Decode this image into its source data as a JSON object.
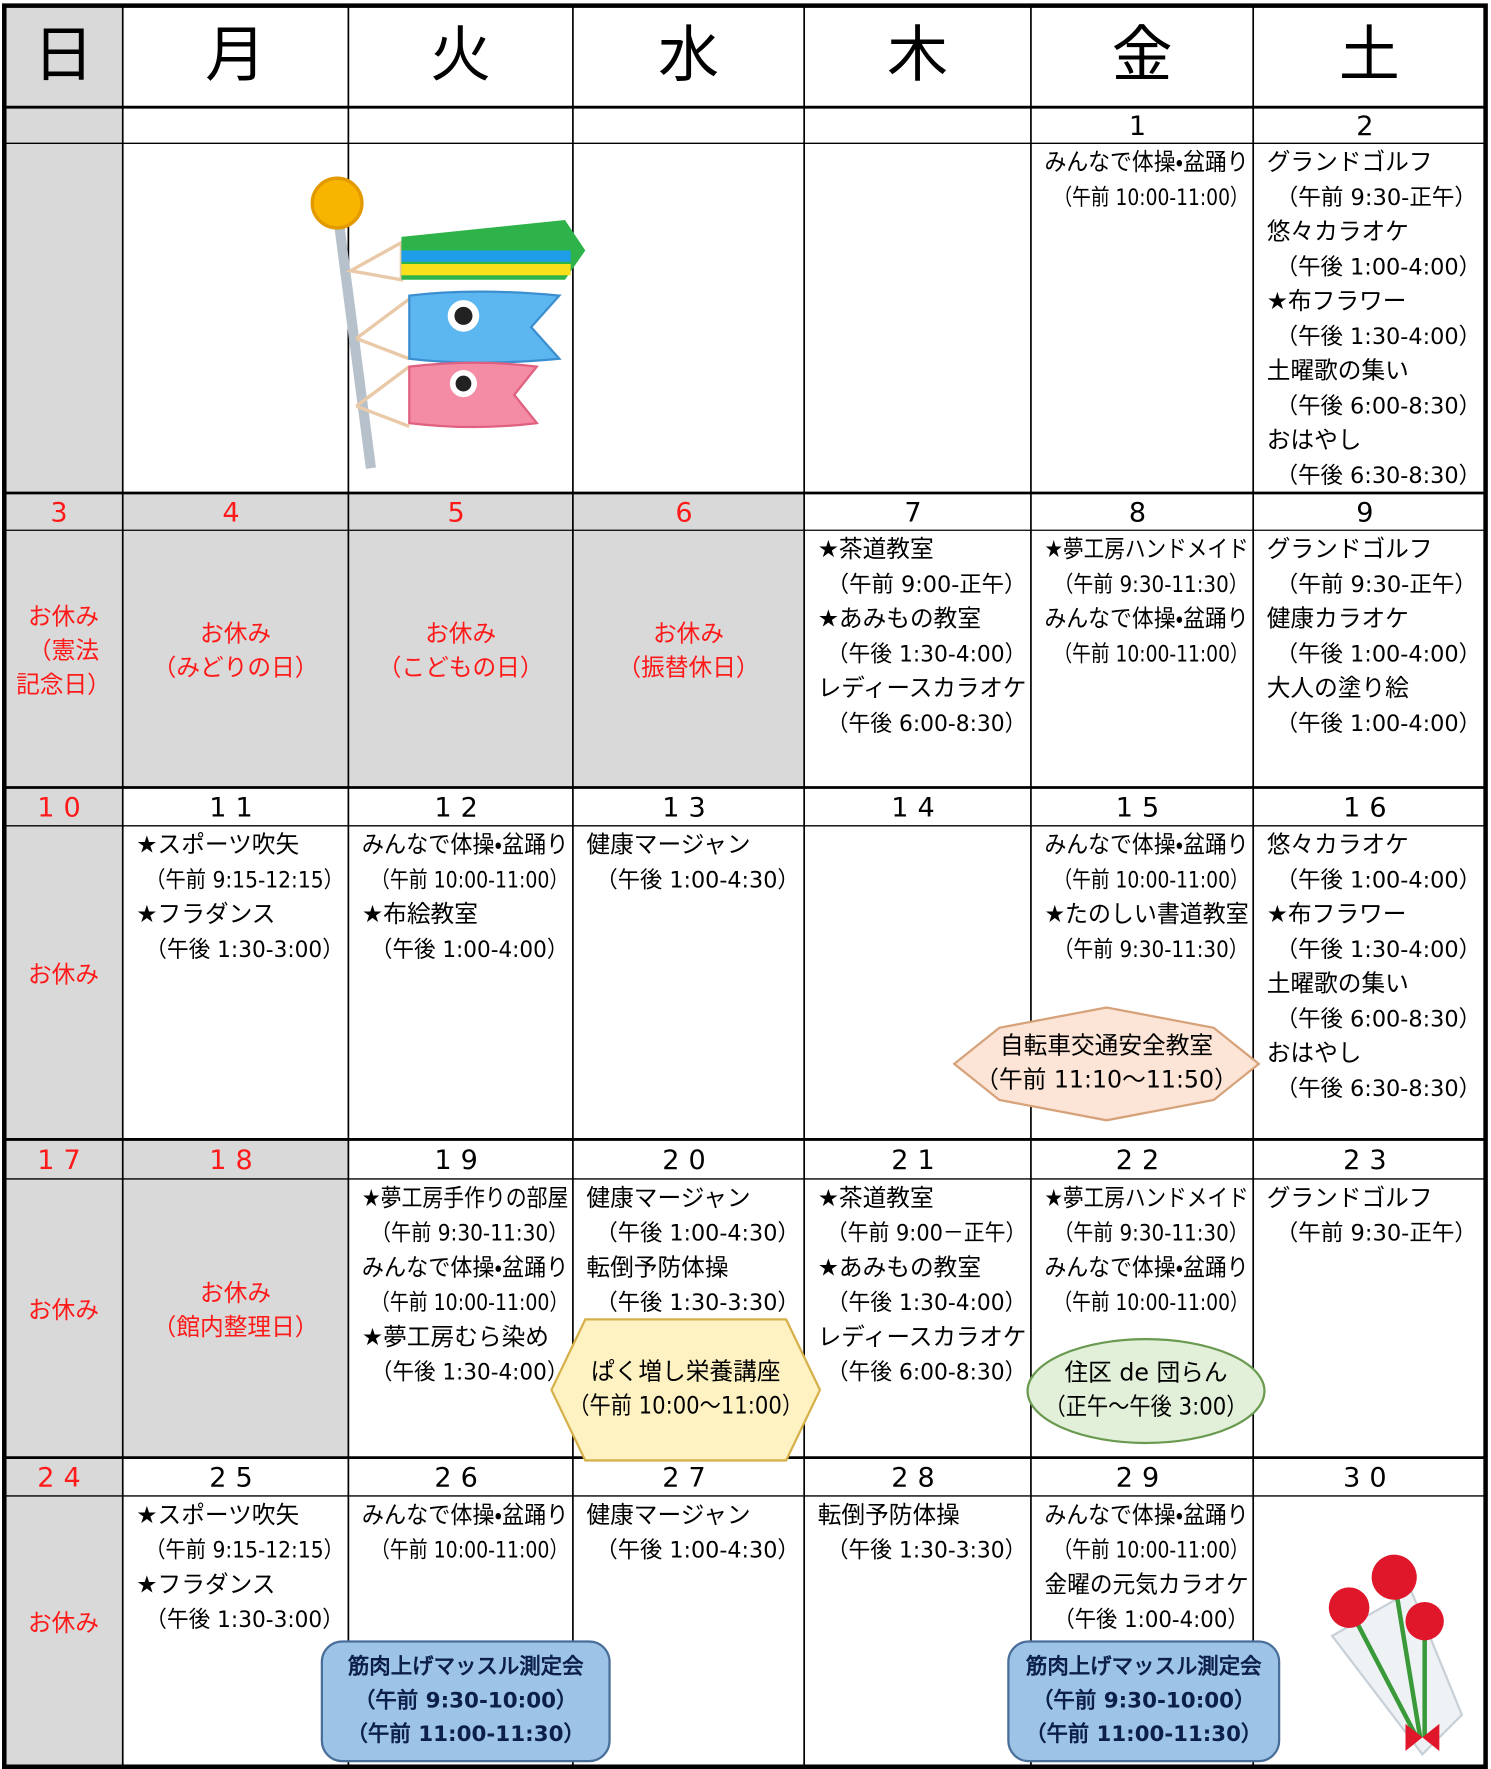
{
  "header": {
    "days": [
      "日",
      "月",
      "火",
      "水",
      "木",
      "金",
      "土"
    ]
  },
  "weeks": [
    {
      "cells": [
        {},
        {},
        {},
        {},
        {},
        {
          "date": 1,
          "events": [
            {
              "title": "みんなで体操・盆踊り",
              "time": "（午前 10:00-11:00）"
            }
          ]
        },
        {
          "date": 2,
          "events": [
            {
              "title": "グランドゴルフ",
              "time": "（午前 9:30-正午）"
            },
            {
              "title": "悠々カラオケ",
              "time": "（午後 1:00-4:00）"
            },
            {
              "title": "★布フラワー",
              "time": "（午後 1:30-4:00）"
            },
            {
              "title": "土曜歌の集い",
              "time": "（午後 6:00-8:30）"
            },
            {
              "title": "おはやし",
              "time": "（午後 6:30-8:30）"
            }
          ]
        }
      ]
    },
    {
      "cells": [
        {
          "date": 3,
          "holiday": [
            "お休み",
            "（憲法",
            "記念日）"
          ]
        },
        {
          "date": 4,
          "holiday": [
            "お休み",
            "（みどりの日）"
          ]
        },
        {
          "date": 5,
          "holiday": [
            "お休み",
            "（こどもの日）"
          ]
        },
        {
          "date": 6,
          "holiday": [
            "お休み",
            "（振替休日）"
          ]
        },
        {
          "date": 7,
          "events": [
            {
              "title": "★茶道教室",
              "time": "（午前 9:00-正午）"
            },
            {
              "title": "★あみもの教室",
              "time": "（午後 1:30-4:00）"
            },
            {
              "title": "レディースカラオケ",
              "time": "（午後 6:00-8:30）"
            }
          ]
        },
        {
          "date": 8,
          "events": [
            {
              "title": "★夢工房ハンドメイド",
              "time": "（午前 9:30-11:30）"
            },
            {
              "title": "みんなで体操・盆踊り",
              "time": "（午前 10:00-11:00）"
            }
          ]
        },
        {
          "date": 9,
          "events": [
            {
              "title": "グランドゴルフ",
              "time": "（午前 9:30-正午）"
            },
            {
              "title": "健康カラオケ",
              "time": "（午後 1:00-4:00）"
            },
            {
              "title": "大人の塗り絵",
              "time": "（午後 1:00-4:00）"
            }
          ]
        }
      ]
    },
    {
      "cells": [
        {
          "date": 10,
          "holiday": [
            "お休み"
          ]
        },
        {
          "date": 11,
          "events": [
            {
              "title": "★スポーツ吹矢",
              "time": "（午前 9:15-12:15）"
            },
            {
              "title": "★フラダンス",
              "time": "（午後 1:30-3:00）"
            }
          ]
        },
        {
          "date": 12,
          "events": [
            {
              "title": "みんなで体操・盆踊り",
              "time": "（午前 10:00-11:00）"
            },
            {
              "title": "★布絵教室",
              "time": "（午後 1:00-4:00）"
            }
          ]
        },
        {
          "date": 13,
          "events": [
            {
              "title": "健康マージャン",
              "time": "（午後 1:00-4:30）"
            }
          ]
        },
        {
          "date": 14
        },
        {
          "date": 15,
          "events": [
            {
              "title": "みんなで体操・盆踊り",
              "time": "（午前 10:00-11:00）"
            },
            {
              "title": "★たのしい書道教室",
              "time": "（午前 9:30-11:30）"
            }
          ]
        },
        {
          "date": 16,
          "events": [
            {
              "title": "悠々カラオケ",
              "time": "（午後 1:00-4:00）"
            },
            {
              "title": "★布フラワー",
              "time": "（午後 1:30-4:00）"
            },
            {
              "title": "土曜歌の集い",
              "time": "（午後 6:00-8:30）"
            },
            {
              "title": "おはやし",
              "time": "（午後 6:30-8:30）"
            }
          ]
        }
      ]
    },
    {
      "cells": [
        {
          "date": 17,
          "holiday": [
            "お休み"
          ]
        },
        {
          "date": 18,
          "holiday": [
            "お休み",
            "（館内整理日）"
          ]
        },
        {
          "date": 19,
          "events": [
            {
              "title": "★夢工房手作りの部屋",
              "time": "（午前 9:30-11:30）"
            },
            {
              "title": "みんなで体操・盆踊り",
              "time": "（午前 10:00-11:00）"
            },
            {
              "title": "★夢工房むら染め",
              "time": "（午後 1:30-4:00）"
            }
          ]
        },
        {
          "date": 20,
          "events": [
            {
              "title": "健康マージャン",
              "time": "（午後 1:00-4:30）"
            },
            {
              "title": "転倒予防体操",
              "time": "（午後 1:30-3:30）"
            }
          ]
        },
        {
          "date": 21,
          "events": [
            {
              "title": "★茶道教室",
              "time": "（午前 9:00－正午）"
            },
            {
              "title": "★あみもの教室",
              "time": "（午後 1:30-4:00）"
            },
            {
              "title": "レディースカラオケ",
              "time": "（午後 6:00-8:30）"
            }
          ]
        },
        {
          "date": 22,
          "events": [
            {
              "title": "★夢工房ハンドメイド",
              "time": "（午前 9:30-11:30）"
            },
            {
              "title": "みんなで体操・盆踊り",
              "time": "（午前 10:00-11:00）"
            }
          ]
        },
        {
          "date": 23,
          "events": [
            {
              "title": "グランドゴルフ",
              "time": "（午前 9:30-正午）"
            }
          ]
        }
      ]
    },
    {
      "cells": [
        {
          "date": 24,
          "holiday": [
            "お休み"
          ]
        },
        {
          "date": 25,
          "events": [
            {
              "title": "★スポーツ吹矢",
              "time": "（午前 9:15-12:15）"
            },
            {
              "title": "★フラダンス",
              "time": "（午後 1:30-3:00）"
            }
          ]
        },
        {
          "date": 26,
          "events": [
            {
              "title": "みんなで体操・盆踊り",
              "time": "（午前 10:00-11:00）"
            }
          ]
        },
        {
          "date": 27,
          "events": [
            {
              "title": "健康マージャン",
              "time": "（午後 1:00-4:30）"
            }
          ]
        },
        {
          "date": 28,
          "events": [
            {
              "title": "転倒予防体操",
              "time": "（午後 1:30-3:30）"
            }
          ]
        },
        {
          "date": 29,
          "events": [
            {
              "title": "みんなで体操・盆踊り",
              "time": "（午前 10:00-11:00）"
            },
            {
              "title": "金曜の元気カラオケ",
              "time": "（午後 1:00-4:00）"
            }
          ]
        },
        {
          "date": 30
        }
      ]
    }
  ],
  "callouts": [
    {
      "lines": [
        "自転車交通安全教室",
        "（午前 11:10～11:50）"
      ]
    },
    {
      "lines": [
        "ぱく増し栄養講座",
        "（午前 10:00～11:00）"
      ]
    },
    {
      "lines": [
        "住区 de 団らん",
        "（正午～午後 3:00）"
      ]
    },
    {
      "lines": [
        "筋肉上げマッスル測定会",
        "（午前 9:30-10:00）",
        "（午前 11:00-11:30）"
      ]
    },
    {
      "lines": [
        "筋肉上げマッスル測定会",
        "（午前 9:30-10:00）",
        "（午前 11:00-11:30）"
      ]
    }
  ]
}
